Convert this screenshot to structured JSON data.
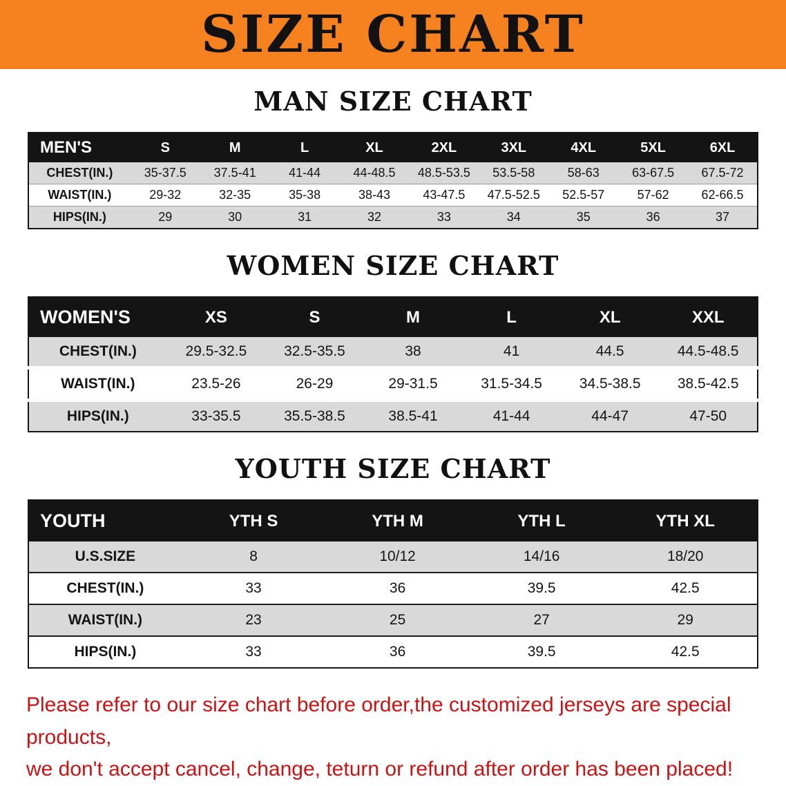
{
  "banner": {
    "title": "SIZE CHART",
    "bg_color": "#f6821f"
  },
  "sections": [
    {
      "key": "mens",
      "heading": "MAN SIZE CHART",
      "table": {
        "header": [
          "MEN'S",
          "S",
          "M",
          "L",
          "XL",
          "2XL",
          "3XL",
          "4XL",
          "5XL",
          "6XL"
        ],
        "rows": [
          [
            "CHEST(IN.)",
            "35-37.5",
            "37.5-41",
            "41-44",
            "44-48.5",
            "48.5-53.5",
            "53.5-58",
            "58-63",
            "63-67.5",
            "67.5-72"
          ],
          [
            "WAIST(IN.)",
            "29-32",
            "32-35",
            "35-38",
            "38-43",
            "43-47.5",
            "47.5-52.5",
            "52.5-57",
            "57-62",
            "62-66.5"
          ],
          [
            "HIPS(IN.)",
            "29",
            "30",
            "31",
            "32",
            "33",
            "34",
            "35",
            "36",
            "37"
          ]
        ]
      }
    },
    {
      "key": "womens",
      "heading": "WOMEN SIZE CHART",
      "table": {
        "header": [
          "WOMEN'S",
          "XS",
          "S",
          "M",
          "L",
          "XL",
          "XXL"
        ],
        "rows": [
          [
            "CHEST(IN.)",
            "29.5-32.5",
            "32.5-35.5",
            "38",
            "41",
            "44.5",
            "44.5-48.5"
          ],
          [
            "WAIST(IN.)",
            "23.5-26",
            "26-29",
            "29-31.5",
            "31.5-34.5",
            "34.5-38.5",
            "38.5-42.5"
          ],
          [
            "HIPS(IN.)",
            "33-35.5",
            "35.5-38.5",
            "38.5-41",
            "41-44",
            "44-47",
            "47-50"
          ]
        ]
      }
    },
    {
      "key": "youth",
      "heading": "YOUTH SIZE CHART",
      "table": {
        "header": [
          "YOUTH",
          "YTH S",
          "YTH M",
          "YTH L",
          "YTH XL"
        ],
        "rows": [
          [
            "U.S.SIZE",
            "8",
            "10/12",
            "14/16",
            "18/20"
          ],
          [
            "CHEST(IN.)",
            "33",
            "36",
            "39.5",
            "42.5"
          ],
          [
            "WAIST(IN.)",
            "23",
            "25",
            "27",
            "29"
          ],
          [
            "HIPS(IN.)",
            "33",
            "36",
            "39.5",
            "42.5"
          ]
        ]
      }
    }
  ],
  "footer": {
    "line1": "Please refer to our size chart before order,the customized jerseys are special products,",
    "line2": "we don't accept cancel, change, teturn or refund after order has been placed!",
    "text_color": "#cc1212"
  }
}
